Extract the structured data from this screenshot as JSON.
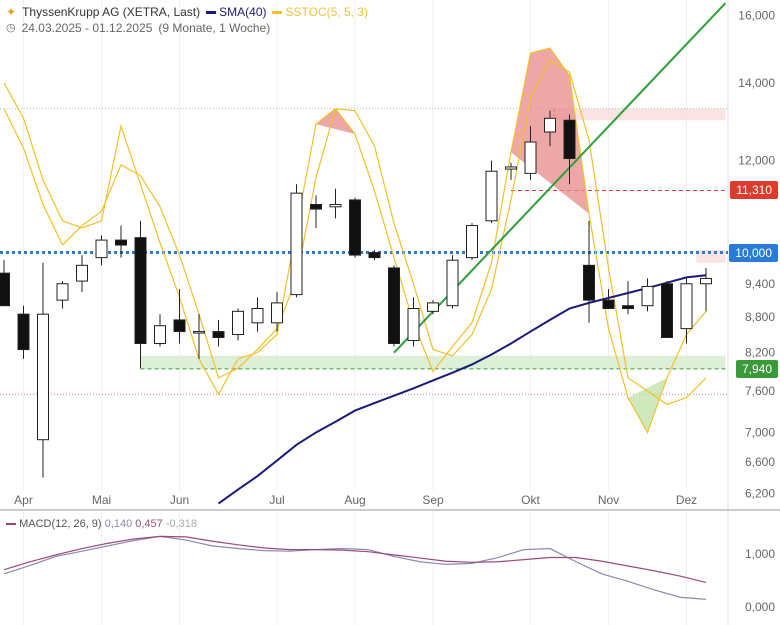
{
  "header": {
    "title": "ThyssenKrupp AG (XETRA, Last)",
    "legend": [
      {
        "label": "SMA(40)",
        "color": "#1a1a7a"
      },
      {
        "label": "SSTOC(5, 5, 3)",
        "color": "#f0c040"
      }
    ],
    "date_range": "24.03.2025 - 01.12.2025",
    "duration": "(9 Monate, 1 Woche)"
  },
  "macd": {
    "label": "MACD(12, 26, 9)",
    "v1": "0,140",
    "v2": "0,457",
    "v3": "-0,318",
    "ticks": [
      "1,000",
      "0,000"
    ],
    "ticks_values": [
      1.0,
      0.0
    ],
    "ylim": [
      -0.25,
      1.45
    ],
    "macd_line": [
      0.62,
      0.78,
      0.95,
      1.05,
      1.15,
      1.25,
      1.33,
      1.26,
      1.15,
      1.1,
      1.06,
      1.05,
      1.08,
      1.1,
      1.08,
      0.95,
      0.85,
      0.8,
      0.82,
      0.93,
      1.08,
      1.1,
      0.85,
      0.62,
      0.48,
      0.32,
      0.18,
      0.14
    ],
    "signal_line": [
      0.7,
      0.85,
      0.98,
      1.1,
      1.2,
      1.28,
      1.33,
      1.32,
      1.24,
      1.17,
      1.11,
      1.08,
      1.08,
      1.07,
      1.04,
      0.98,
      0.92,
      0.86,
      0.84,
      0.85,
      0.89,
      0.93,
      0.93,
      0.86,
      0.77,
      0.68,
      0.58,
      0.46
    ],
    "colors": {
      "macd": "#8a8ab0",
      "signal": "#9a4a7a"
    }
  },
  "chart_data": {
    "type": "candlestick",
    "y_ticks": [
      16000,
      14000,
      12000,
      11310,
      10000,
      9400,
      8800,
      8200,
      7940,
      7600,
      7000,
      6600,
      6200
    ],
    "y_tick_labels": [
      "16,000",
      "14,000",
      "12,000",
      "11,310",
      "10,000",
      "9,400",
      "8,800",
      "8,200",
      "7,940",
      "7,600",
      "7,000",
      "6,600",
      "6,200"
    ],
    "y_scale": "log",
    "ylim": [
      6050,
      16500
    ],
    "x_labels": [
      "Apr",
      "Mai",
      "Jun",
      "Jul",
      "Aug",
      "Sep",
      "Okt",
      "Nov",
      "Dez"
    ],
    "x_label_index": [
      1,
      5,
      9,
      14,
      18,
      22,
      27,
      31,
      35
    ],
    "candles": [
      {
        "o": 9600,
        "h": 9850,
        "l": 9000,
        "c": 9000
      },
      {
        "o": 8850,
        "h": 9000,
        "l": 8100,
        "c": 8250
      },
      {
        "o": 6900,
        "h": 9800,
        "l": 6400,
        "c": 8850
      },
      {
        "o": 9100,
        "h": 9450,
        "l": 8950,
        "c": 9400
      },
      {
        "o": 9450,
        "h": 9950,
        "l": 9250,
        "c": 9750
      },
      {
        "o": 9900,
        "h": 10350,
        "l": 9750,
        "c": 10250
      },
      {
        "o": 10250,
        "h": 10550,
        "l": 9900,
        "c": 10150
      },
      {
        "o": 10300,
        "h": 10650,
        "l": 7950,
        "c": 8350
      },
      {
        "o": 8350,
        "h": 8850,
        "l": 8300,
        "c": 8650
      },
      {
        "o": 8750,
        "h": 9300,
        "l": 8350,
        "c": 8550
      },
      {
        "o": 8550,
        "h": 8850,
        "l": 8100,
        "c": 8550
      },
      {
        "o": 8550,
        "h": 8750,
        "l": 8300,
        "c": 8450
      },
      {
        "o": 8500,
        "h": 8950,
        "l": 8400,
        "c": 8900
      },
      {
        "o": 8700,
        "h": 9150,
        "l": 8550,
        "c": 8950
      },
      {
        "o": 8700,
        "h": 9250,
        "l": 8550,
        "c": 9050
      },
      {
        "o": 9200,
        "h": 11450,
        "l": 9150,
        "c": 11250
      },
      {
        "o": 11000,
        "h": 11200,
        "l": 10500,
        "c": 10900
      },
      {
        "o": 10950,
        "h": 11350,
        "l": 10700,
        "c": 11000
      },
      {
        "o": 11100,
        "h": 11150,
        "l": 9900,
        "c": 9950
      },
      {
        "o": 10000,
        "h": 10050,
        "l": 9850,
        "c": 9900
      },
      {
        "o": 9700,
        "h": 9750,
        "l": 8300,
        "c": 8350
      },
      {
        "o": 8400,
        "h": 9150,
        "l": 8300,
        "c": 8950
      },
      {
        "o": 8900,
        "h": 9100,
        "l": 8850,
        "c": 9050
      },
      {
        "o": 9000,
        "h": 9950,
        "l": 8950,
        "c": 9850
      },
      {
        "o": 9900,
        "h": 10600,
        "l": 9850,
        "c": 10550
      },
      {
        "o": 10650,
        "h": 12000,
        "l": 10600,
        "c": 11750
      },
      {
        "o": 11800,
        "h": 11950,
        "l": 11550,
        "c": 11850
      },
      {
        "o": 11700,
        "h": 12850,
        "l": 11550,
        "c": 12450
      },
      {
        "o": 12700,
        "h": 13250,
        "l": 12350,
        "c": 13050
      },
      {
        "o": 13000,
        "h": 13150,
        "l": 11450,
        "c": 12050
      },
      {
        "o": 9750,
        "h": 10650,
        "l": 8700,
        "c": 9100
      },
      {
        "o": 9100,
        "h": 9300,
        "l": 8950,
        "c": 8950
      },
      {
        "o": 9000,
        "h": 9450,
        "l": 8850,
        "c": 8950
      },
      {
        "o": 9000,
        "h": 9500,
        "l": 8900,
        "c": 9350
      },
      {
        "o": 9400,
        "h": 9450,
        "l": 8450,
        "c": 8450
      },
      {
        "o": 8600,
        "h": 9500,
        "l": 8350,
        "c": 9400
      },
      {
        "o": 9400,
        "h": 9700,
        "l": 8900,
        "c": 9500
      }
    ],
    "sma40": [
      null,
      null,
      null,
      null,
      null,
      null,
      null,
      null,
      null,
      null,
      null,
      6080,
      6250,
      6420,
      6620,
      6830,
      7000,
      7150,
      7310,
      7420,
      7530,
      7640,
      7760,
      7880,
      8010,
      8170,
      8350,
      8550,
      8750,
      8950,
      9050,
      9140,
      9230,
      9320,
      9420,
      9520,
      9560
    ],
    "sstoc_fast": [
      14000,
      13050,
      11550,
      10650,
      10500,
      10650,
      12850,
      11450,
      10200,
      9150,
      8100,
      7550,
      8100,
      8200,
      8500,
      10500,
      12900,
      13300,
      12650,
      11300,
      9900,
      8700,
      7900,
      8300,
      8700,
      9800,
      12200,
      14850,
      15000,
      14200,
      10800,
      8600,
      7500,
      7000,
      7800,
      8500,
      8900
    ],
    "sstoc_slow": [
      13300,
      12300,
      11000,
      10150,
      10550,
      10850,
      11900,
      11650,
      10950,
      9950,
      8850,
      7800,
      7950,
      8250,
      8600,
      9500,
      11600,
      13300,
      13250,
      12350,
      10600,
      9400,
      8250,
      8150,
      8500,
      9300,
      11100,
      13600,
      14650,
      14300,
      12500,
      9700,
      7800,
      7600,
      7400,
      7500,
      7800
    ],
    "lines": {
      "resistance_red_dashed": 11310,
      "support_green_dashed": 7940,
      "blue_dotted": 10000,
      "top_dotted": 13300,
      "bottom_dotted": 7550
    },
    "trendline": {
      "from": {
        "i": 20,
        "v": 8200
      },
      "to": {
        "i": 37,
        "v": 16400
      }
    },
    "zones": [
      {
        "type": "resistance",
        "from_i": 28.2,
        "to_i": 37,
        "top": 13300,
        "bottom": 13000,
        "color": "#fcdede"
      },
      {
        "type": "support",
        "from_i": 7,
        "to_i": 37,
        "top": 8150,
        "bottom": 7940,
        "color": "#d7ecd0"
      },
      {
        "type": "resistance",
        "from_i": 35.5,
        "to_i": 37,
        "top": 10050,
        "bottom": 9800,
        "color": "#fcdede"
      }
    ],
    "labels": [
      {
        "value": 11310,
        "text": "11,310",
        "color": "#e03a2e"
      },
      {
        "value": 10000,
        "text": "10,000",
        "color": "#2a7bd8"
      },
      {
        "value": 7940,
        "text": "7,940",
        "color": "#3a9a3a"
      }
    ],
    "colors": {
      "sma": "#1a1a7a",
      "sstoc_fast": "#f2c02a",
      "sstoc_slow": "#f2c02a",
      "trend": "#2e9e3a",
      "red": "#e03a2e",
      "blue": "#2a7bd8",
      "green": "#3a9a3a"
    }
  }
}
